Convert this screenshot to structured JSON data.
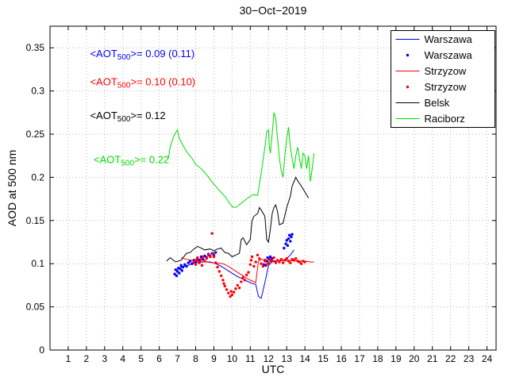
{
  "chart_data": {
    "type": "line",
    "title": "30−Oct−2019",
    "xlabel": "UTC",
    "ylabel": "AOD at 500 nm",
    "xlim": [
      0,
      24.5
    ],
    "ylim": [
      0,
      0.375
    ],
    "grid": true,
    "grid_color": "#b8b8b8",
    "legend_position": "upper right",
    "xticks": [
      1,
      2,
      3,
      4,
      5,
      6,
      7,
      8,
      9,
      10,
      11,
      12,
      13,
      14,
      15,
      16,
      17,
      18,
      19,
      20,
      21,
      22,
      23,
      24
    ],
    "yticks": [
      0,
      0.05,
      0.1,
      0.15,
      0.2,
      0.25,
      0.3,
      0.35
    ],
    "ytick_labels": [
      "0",
      "0.05",
      "0.1",
      "0.15",
      "0.2",
      "0.25",
      "0.3",
      "0.35"
    ],
    "annotations": [
      {
        "pre": "<AOT",
        "sub": "500",
        "post": ">= 0.09 (0.11)",
        "color": "#0000ff",
        "x": 2.2,
        "y": 0.343
      },
      {
        "pre": "<AOT",
        "sub": "500",
        "post": ">= 0.10 (0.10)",
        "color": "#ff0000",
        "x": 2.2,
        "y": 0.31
      },
      {
        "pre": "<AOT",
        "sub": "500",
        "post": ">= 0.12",
        "color": "#000000",
        "x": 2.2,
        "y": 0.271
      },
      {
        "pre": "<AOT",
        "sub": "500",
        "post": ">= 0.22",
        "color": "#00dd00",
        "x": 2.4,
        "y": 0.22
      }
    ],
    "series": [
      {
        "name": "Warszawa",
        "type": "line",
        "color": "#0000ff",
        "points": [
          [
            6.9,
            0.092
          ],
          [
            7.1,
            0.095
          ],
          [
            7.4,
            0.097
          ],
          [
            7.7,
            0.099
          ],
          [
            8.0,
            0.101
          ],
          [
            8.4,
            0.102
          ],
          [
            8.8,
            0.102
          ],
          [
            9.1,
            0.1
          ],
          [
            9.4,
            0.097
          ],
          [
            9.7,
            0.093
          ],
          [
            10.0,
            0.089
          ],
          [
            10.3,
            0.085
          ],
          [
            10.6,
            0.082
          ],
          [
            10.9,
            0.079
          ],
          [
            11.1,
            0.077
          ],
          [
            11.3,
            0.076
          ],
          [
            11.45,
            0.062
          ],
          [
            11.6,
            0.06
          ],
          [
            11.8,
            0.078
          ],
          [
            12.0,
            0.098
          ],
          [
            12.2,
            0.102
          ],
          [
            12.5,
            0.103
          ],
          [
            12.8,
            0.104
          ],
          [
            13.0,
            0.106
          ],
          [
            13.2,
            0.11
          ],
          [
            13.4,
            0.116
          ]
        ]
      },
      {
        "name": "Warszawa",
        "type": "scatter",
        "color": "#0000ff",
        "points": [
          [
            6.85,
            0.088
          ],
          [
            6.9,
            0.093
          ],
          [
            6.95,
            0.086
          ],
          [
            7.0,
            0.091
          ],
          [
            7.05,
            0.095
          ],
          [
            7.1,
            0.089
          ],
          [
            7.15,
            0.094
          ],
          [
            7.2,
            0.098
          ],
          [
            7.25,
            0.092
          ],
          [
            7.3,
            0.096
          ],
          [
            7.4,
            0.099
          ],
          [
            7.5,
            0.097
          ],
          [
            7.6,
            0.101
          ],
          [
            7.7,
            0.103
          ],
          [
            7.8,
            0.1
          ],
          [
            7.9,
            0.104
          ],
          [
            8.0,
            0.102
          ],
          [
            8.1,
            0.106
          ],
          [
            8.2,
            0.104
          ],
          [
            8.3,
            0.108
          ],
          [
            8.4,
            0.105
          ],
          [
            8.5,
            0.109
          ],
          [
            8.6,
            0.107
          ],
          [
            8.7,
            0.111
          ],
          [
            8.8,
            0.109
          ],
          [
            8.9,
            0.112
          ],
          [
            9.0,
            0.11
          ],
          [
            9.1,
            0.113
          ],
          [
            11.75,
            0.099
          ],
          [
            11.8,
            0.104
          ],
          [
            11.85,
            0.098
          ],
          [
            11.9,
            0.103
          ],
          [
            11.95,
            0.107
          ],
          [
            12.0,
            0.101
          ],
          [
            12.05,
            0.105
          ],
          [
            12.1,
            0.108
          ],
          [
            12.15,
            0.103
          ],
          [
            12.2,
            0.106
          ],
          [
            12.85,
            0.118
          ],
          [
            12.95,
            0.123
          ],
          [
            13.0,
            0.127
          ],
          [
            13.05,
            0.121
          ],
          [
            13.1,
            0.129
          ],
          [
            13.15,
            0.133
          ],
          [
            13.2,
            0.126
          ],
          [
            13.25,
            0.131
          ],
          [
            13.3,
            0.134
          ]
        ]
      },
      {
        "name": "Strzyzow",
        "type": "line",
        "color": "#ff0000",
        "points": [
          [
            7.2,
            0.107
          ],
          [
            7.5,
            0.105
          ],
          [
            8.0,
            0.103
          ],
          [
            8.5,
            0.102
          ],
          [
            9.0,
            0.101
          ],
          [
            9.5,
            0.1
          ],
          [
            9.8,
            0.097
          ],
          [
            10.0,
            0.094
          ],
          [
            10.3,
            0.09
          ],
          [
            10.6,
            0.086
          ],
          [
            10.9,
            0.082
          ],
          [
            11.1,
            0.08
          ],
          [
            11.3,
            0.078
          ],
          [
            11.45,
            0.103
          ],
          [
            11.6,
            0.105
          ],
          [
            12.0,
            0.104
          ],
          [
            12.5,
            0.103
          ],
          [
            13.0,
            0.104
          ],
          [
            13.5,
            0.103
          ],
          [
            14.0,
            0.103
          ],
          [
            14.3,
            0.102
          ],
          [
            14.5,
            0.102
          ]
        ]
      },
      {
        "name": "Strzyzow",
        "type": "scatter",
        "color": "#ff0000",
        "points": [
          [
            7.9,
            0.102
          ],
          [
            8.0,
            0.099
          ],
          [
            8.05,
            0.104
          ],
          [
            8.1,
            0.107
          ],
          [
            8.2,
            0.101
          ],
          [
            8.3,
            0.105
          ],
          [
            8.35,
            0.098
          ],
          [
            8.4,
            0.108
          ],
          [
            8.5,
            0.103
          ],
          [
            8.6,
            0.106
          ],
          [
            8.7,
            0.11
          ],
          [
            8.8,
            0.108
          ],
          [
            8.9,
            0.135
          ],
          [
            8.95,
            0.112
          ],
          [
            9.0,
            0.108
          ],
          [
            9.1,
            0.101
          ],
          [
            9.2,
            0.096
          ],
          [
            9.3,
            0.091
          ],
          [
            9.4,
            0.086
          ],
          [
            9.5,
            0.081
          ],
          [
            9.55,
            0.077
          ],
          [
            9.6,
            0.074
          ],
          [
            9.7,
            0.07
          ],
          [
            9.8,
            0.066
          ],
          [
            9.9,
            0.062
          ],
          [
            9.95,
            0.068
          ],
          [
            10.0,
            0.064
          ],
          [
            10.1,
            0.067
          ],
          [
            10.2,
            0.071
          ],
          [
            10.3,
            0.075
          ],
          [
            10.4,
            0.072
          ],
          [
            10.5,
            0.079
          ],
          [
            10.6,
            0.084
          ],
          [
            10.7,
            0.081
          ],
          [
            10.8,
            0.087
          ],
          [
            10.9,
            0.09
          ],
          [
            11.0,
            0.099
          ],
          [
            11.05,
            0.104
          ],
          [
            11.1,
            0.108
          ],
          [
            11.2,
            0.097
          ],
          [
            11.3,
            0.102
          ],
          [
            11.4,
            0.11
          ],
          [
            11.5,
            0.106
          ],
          [
            11.6,
            0.1
          ],
          [
            11.7,
            0.097
          ],
          [
            11.8,
            0.103
          ],
          [
            11.9,
            0.099
          ],
          [
            12.0,
            0.101
          ],
          [
            12.1,
            0.105
          ],
          [
            12.2,
            0.103
          ],
          [
            12.3,
            0.107
          ],
          [
            12.4,
            0.101
          ],
          [
            12.5,
            0.104
          ],
          [
            12.6,
            0.102
          ],
          [
            12.7,
            0.105
          ],
          [
            12.8,
            0.101
          ],
          [
            12.9,
            0.104
          ],
          [
            13.0,
            0.106
          ],
          [
            13.1,
            0.103
          ],
          [
            13.2,
            0.101
          ],
          [
            13.3,
            0.105
          ],
          [
            13.4,
            0.104
          ],
          [
            13.5,
            0.106
          ],
          [
            13.6,
            0.103
          ],
          [
            13.7,
            0.102
          ],
          [
            13.8,
            0.1
          ],
          [
            13.9,
            0.103
          ],
          [
            14.0,
            0.102
          ]
        ]
      },
      {
        "name": "Belsk",
        "type": "line",
        "color": "#000000",
        "points": [
          [
            6.4,
            0.103
          ],
          [
            6.6,
            0.107
          ],
          [
            6.9,
            0.102
          ],
          [
            7.2,
            0.104
          ],
          [
            7.5,
            0.112
          ],
          [
            7.7,
            0.113
          ],
          [
            7.9,
            0.117
          ],
          [
            8.1,
            0.12
          ],
          [
            8.3,
            0.118
          ],
          [
            8.5,
            0.116
          ],
          [
            8.8,
            0.117
          ],
          [
            9.0,
            0.115
          ],
          [
            9.2,
            0.117
          ],
          [
            9.4,
            0.118
          ],
          [
            9.6,
            0.113
          ],
          [
            9.8,
            0.112
          ],
          [
            10.0,
            0.108
          ],
          [
            10.2,
            0.11
          ],
          [
            10.4,
            0.112
          ],
          [
            10.5,
            0.128
          ],
          [
            10.6,
            0.13
          ],
          [
            10.8,
            0.122
          ],
          [
            11.0,
            0.128
          ],
          [
            11.1,
            0.15
          ],
          [
            11.2,
            0.155
          ],
          [
            11.4,
            0.158
          ],
          [
            11.5,
            0.165
          ],
          [
            11.6,
            0.162
          ],
          [
            11.8,
            0.155
          ],
          [
            11.9,
            0.128
          ],
          [
            12.0,
            0.125
          ],
          [
            12.1,
            0.14
          ],
          [
            12.2,
            0.158
          ],
          [
            12.3,
            0.165
          ],
          [
            12.4,
            0.168
          ],
          [
            12.5,
            0.16
          ],
          [
            12.6,
            0.145
          ],
          [
            12.8,
            0.147
          ],
          [
            13.0,
            0.165
          ],
          [
            13.2,
            0.178
          ],
          [
            13.3,
            0.19
          ],
          [
            13.5,
            0.2
          ],
          [
            13.6,
            0.196
          ],
          [
            13.8,
            0.19
          ],
          [
            14.0,
            0.183
          ],
          [
            14.2,
            0.176
          ]
        ]
      },
      {
        "name": "Raciborz",
        "type": "line",
        "color": "#00dd00",
        "points": [
          [
            6.5,
            0.222
          ],
          [
            6.6,
            0.235
          ],
          [
            6.8,
            0.248
          ],
          [
            7.0,
            0.255
          ],
          [
            7.1,
            0.245
          ],
          [
            7.3,
            0.237
          ],
          [
            7.5,
            0.23
          ],
          [
            7.8,
            0.222
          ],
          [
            8.0,
            0.215
          ],
          [
            8.3,
            0.21
          ],
          [
            8.6,
            0.203
          ],
          [
            9.0,
            0.192
          ],
          [
            9.3,
            0.185
          ],
          [
            9.6,
            0.178
          ],
          [
            10.0,
            0.166
          ],
          [
            10.2,
            0.165
          ],
          [
            10.5,
            0.17
          ],
          [
            10.8,
            0.175
          ],
          [
            11.0,
            0.178
          ],
          [
            11.2,
            0.18
          ],
          [
            11.4,
            0.179
          ],
          [
            11.6,
            0.205
          ],
          [
            11.8,
            0.235
          ],
          [
            11.9,
            0.253
          ],
          [
            12.0,
            0.255
          ],
          [
            12.05,
            0.235
          ],
          [
            12.1,
            0.228
          ],
          [
            12.2,
            0.25
          ],
          [
            12.3,
            0.275
          ],
          [
            12.4,
            0.268
          ],
          [
            12.5,
            0.245
          ],
          [
            12.6,
            0.222
          ],
          [
            12.7,
            0.208
          ],
          [
            12.8,
            0.2
          ],
          [
            12.9,
            0.225
          ],
          [
            13.0,
            0.245
          ],
          [
            13.1,
            0.258
          ],
          [
            13.2,
            0.235
          ],
          [
            13.3,
            0.222
          ],
          [
            13.4,
            0.21
          ],
          [
            13.5,
            0.225
          ],
          [
            13.6,
            0.235
          ],
          [
            13.7,
            0.222
          ],
          [
            13.8,
            0.21
          ],
          [
            13.9,
            0.228
          ],
          [
            14.0,
            0.225
          ],
          [
            14.1,
            0.21
          ],
          [
            14.2,
            0.225
          ],
          [
            14.3,
            0.195
          ],
          [
            14.4,
            0.21
          ],
          [
            14.5,
            0.228
          ]
        ]
      }
    ]
  }
}
